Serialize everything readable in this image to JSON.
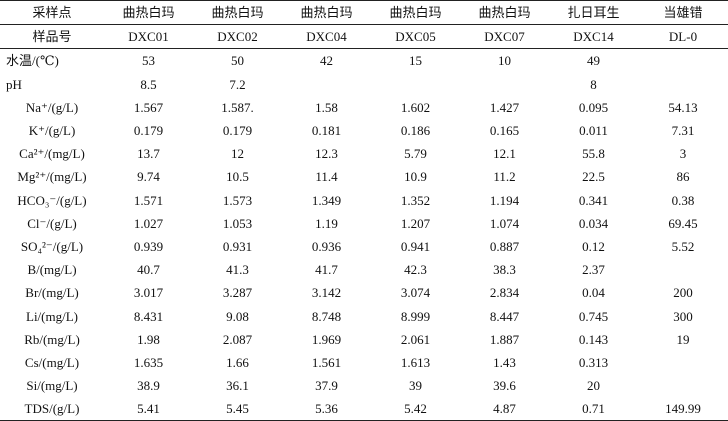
{
  "table": {
    "header": [
      "采样点",
      "曲热白玛",
      "曲热白玛",
      "曲热白玛",
      "曲热白玛",
      "曲热白玛",
      "扎日耳生",
      "当雄错"
    ],
    "sample_ids": [
      "样品号",
      "DXC01",
      "DXC02",
      "DXC04",
      "DXC05",
      "DXC07",
      "DXC14",
      "DL-0"
    ],
    "rows": [
      {
        "label": "水温/(℃)",
        "values": [
          "53",
          "50",
          "42",
          "15",
          "10",
          "49",
          ""
        ]
      },
      {
        "label": "pH",
        "values": [
          "8.5",
          "7.2",
          "",
          "",
          "",
          "8",
          ""
        ]
      },
      {
        "label": "Na⁺/(g/L)",
        "values": [
          "1.567",
          "1.587.",
          "1.58",
          "1.602",
          "1.427",
          "0.095",
          "54.13"
        ]
      },
      {
        "label": "K⁺/(g/L)",
        "values": [
          "0.179",
          "0.179",
          "0.181",
          "0.186",
          "0.165",
          "0.011",
          "7.31"
        ]
      },
      {
        "label": "Ca²⁺/(mg/L)",
        "values": [
          "13.7",
          "12",
          "12.3",
          "5.79",
          "12.1",
          "55.8",
          "3"
        ]
      },
      {
        "label": "Mg²⁺/(mg/L)",
        "values": [
          "9.74",
          "10.5",
          "11.4",
          "10.9",
          "11.2",
          "22.5",
          "86"
        ]
      },
      {
        "label": "HCO₃⁻/(g/L)",
        "values": [
          "1.571",
          "1.573",
          "1.349",
          "1.352",
          "1.194",
          "0.341",
          "0.38"
        ]
      },
      {
        "label": "Cl⁻/(g/L)",
        "values": [
          "1.027",
          "1.053",
          "1.19",
          "1.207",
          "1.074",
          "0.034",
          "69.45"
        ]
      },
      {
        "label": "SO₄²⁻/(g/L)",
        "values": [
          "0.939",
          "0.931",
          "0.936",
          "0.941",
          "0.887",
          "0.12",
          "5.52"
        ]
      },
      {
        "label": "B/(mg/L)",
        "values": [
          "40.7",
          "41.3",
          "41.7",
          "42.3",
          "38.3",
          "2.37",
          ""
        ]
      },
      {
        "label": "Br/(mg/L)",
        "values": [
          "3.017",
          "3.287",
          "3.142",
          "3.074",
          "2.834",
          "0.04",
          "200"
        ]
      },
      {
        "label": "Li/(mg/L)",
        "values": [
          "8.431",
          "9.08",
          "8.748",
          "8.999",
          "8.447",
          "0.745",
          "300"
        ]
      },
      {
        "label": "Rb/(mg/L)",
        "values": [
          "1.98",
          "2.087",
          "1.969",
          "2.061",
          "1.887",
          "0.143",
          "19"
        ]
      },
      {
        "label": "Cs/(mg/L)",
        "values": [
          "1.635",
          "1.66",
          "1.561",
          "1.613",
          "1.43",
          "0.313",
          ""
        ]
      },
      {
        "label": "Si/(mg/L)",
        "values": [
          "38.9",
          "36.1",
          "37.9",
          "39",
          "39.6",
          "20",
          ""
        ]
      },
      {
        "label": "TDS/(g/L)",
        "values": [
          "5.41",
          "5.45",
          "5.36",
          "5.42",
          "4.87",
          "0.71",
          "149.99"
        ]
      }
    ]
  }
}
